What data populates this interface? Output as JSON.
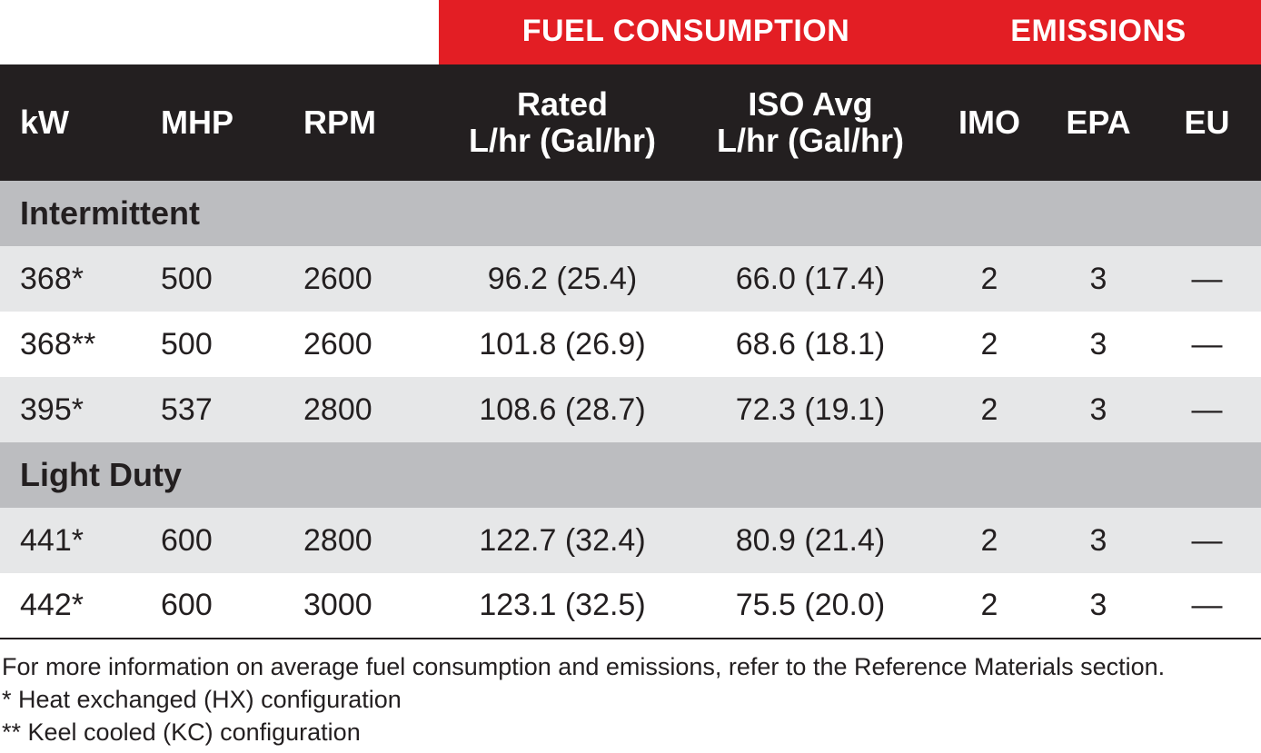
{
  "group_headers": {
    "fuel": "FUEL CONSUMPTION",
    "emissions": "EMISSIONS"
  },
  "columns": {
    "kw": "kW",
    "mhp": "MHP",
    "rpm": "RPM",
    "rated_1": "Rated",
    "rated_2": "L/hr (Gal/hr)",
    "iso_1": "ISO Avg",
    "iso_2": "L/hr (Gal/hr)",
    "imo": "IMO",
    "epa": "EPA",
    "eu": "EU"
  },
  "sections": [
    {
      "title": "Intermittent",
      "rows": [
        {
          "kw": "368*",
          "mhp": "500",
          "rpm": "2600",
          "rated": "96.2 (25.4)",
          "iso": "66.0 (17.4)",
          "imo": "2",
          "epa": "3",
          "eu": "—"
        },
        {
          "kw": "368**",
          "mhp": "500",
          "rpm": "2600",
          "rated": "101.8 (26.9)",
          "iso": "68.6 (18.1)",
          "imo": "2",
          "epa": "3",
          "eu": "—"
        },
        {
          "kw": "395*",
          "mhp": "537",
          "rpm": "2800",
          "rated": "108.6 (28.7)",
          "iso": "72.3 (19.1)",
          "imo": "2",
          "epa": "3",
          "eu": "—"
        }
      ]
    },
    {
      "title": "Light Duty",
      "rows": [
        {
          "kw": "441*",
          "mhp": "600",
          "rpm": "2800",
          "rated": "122.7 (32.4)",
          "iso": "80.9 (21.4)",
          "imo": "2",
          "epa": "3",
          "eu": "—"
        },
        {
          "kw": "442*",
          "mhp": "600",
          "rpm": "3000",
          "rated": "123.1 (32.5)",
          "iso": "75.5 (20.0)",
          "imo": "2",
          "epa": "3",
          "eu": "—"
        }
      ]
    }
  ],
  "notes": [
    "For more information on average fuel consumption and emissions, refer to the Reference Materials section.",
    "* Heat exchanged (HX) configuration",
    "** Keel cooled (KC) configuration"
  ],
  "colors": {
    "red": "#e31e24",
    "header": "#231f20",
    "category": "#bcbdc0",
    "stripe": "#e6e7e8"
  }
}
